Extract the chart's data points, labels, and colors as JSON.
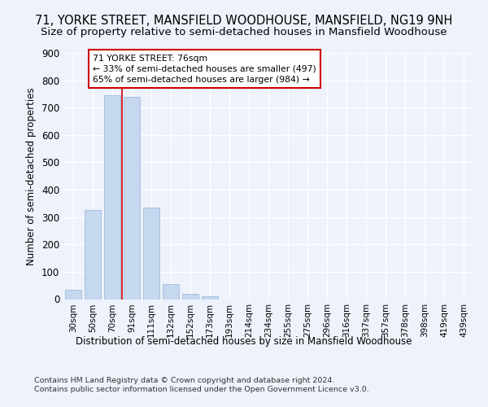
{
  "title": "71, YORKE STREET, MANSFIELD WOODHOUSE, MANSFIELD, NG19 9NH",
  "subtitle": "Size of property relative to semi-detached houses in Mansfield Woodhouse",
  "xlabel_bottom": "Distribution of semi-detached houses by size in Mansfield Woodhouse",
  "ylabel": "Number of semi-detached properties",
  "footnote1": "Contains HM Land Registry data © Crown copyright and database right 2024.",
  "footnote2": "Contains public sector information licensed under the Open Government Licence v3.0.",
  "bar_labels": [
    "30sqm",
    "50sqm",
    "70sqm",
    "91sqm",
    "111sqm",
    "132sqm",
    "152sqm",
    "173sqm",
    "193sqm",
    "214sqm",
    "234sqm",
    "255sqm",
    "275sqm",
    "296sqm",
    "316sqm",
    "337sqm",
    "357sqm",
    "378sqm",
    "398sqm",
    "419sqm",
    "439sqm"
  ],
  "bar_values": [
    35,
    325,
    745,
    740,
    335,
    55,
    20,
    10,
    0,
    0,
    0,
    0,
    0,
    0,
    0,
    0,
    0,
    0,
    0,
    0,
    0
  ],
  "bar_color": "#c5d8f0",
  "bar_edge_color": "#a0bcd8",
  "property_bin_index": 2.5,
  "property_label": "71 YORKE STREET: 76sqm",
  "smaller_pct": 33,
  "smaller_count": 497,
  "larger_pct": 65,
  "larger_count": 984,
  "vline_color": "#cc0000",
  "ylim": [
    0,
    900
  ],
  "yticks": [
    0,
    100,
    200,
    300,
    400,
    500,
    600,
    700,
    800,
    900
  ],
  "bg_color": "#eef2fb",
  "grid_color": "#ffffff",
  "title_fontsize": 10.5,
  "subtitle_fontsize": 9.5
}
